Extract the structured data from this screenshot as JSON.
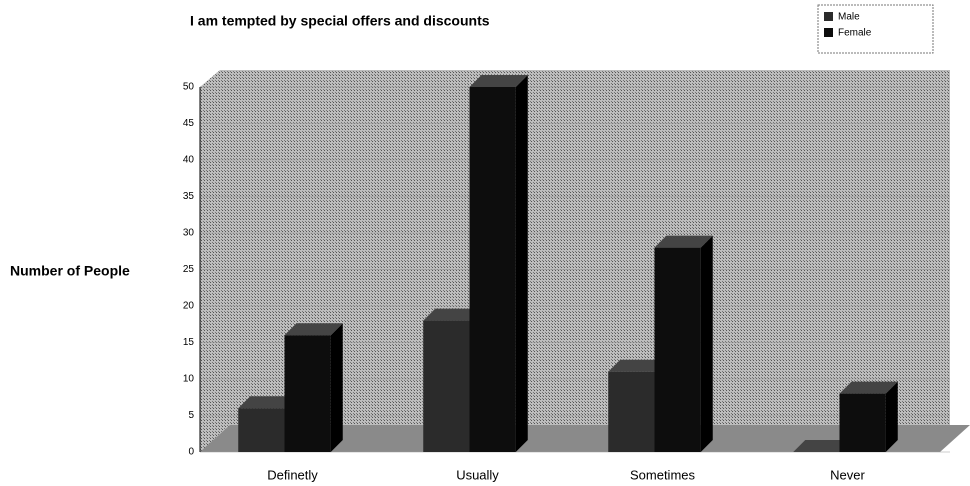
{
  "chart_data": {
    "type": "bar",
    "title": "I am tempted by special offers and discounts",
    "y_axis_label": "Number of People",
    "categories": [
      "Definetly",
      "Usually",
      "Sometimes",
      "Never"
    ],
    "series": [
      {
        "name": "Male",
        "color": "#2b2b2b",
        "values": [
          6,
          18,
          11,
          0
        ]
      },
      {
        "name": "Female",
        "color": "#0d0d0d",
        "values": [
          16,
          50,
          28,
          8
        ]
      }
    ],
    "ylim": [
      0,
      50
    ],
    "yticks": [
      0,
      5,
      10,
      15,
      20,
      25,
      30,
      35,
      40,
      45,
      50
    ],
    "grid": true,
    "legend": "top-right"
  }
}
